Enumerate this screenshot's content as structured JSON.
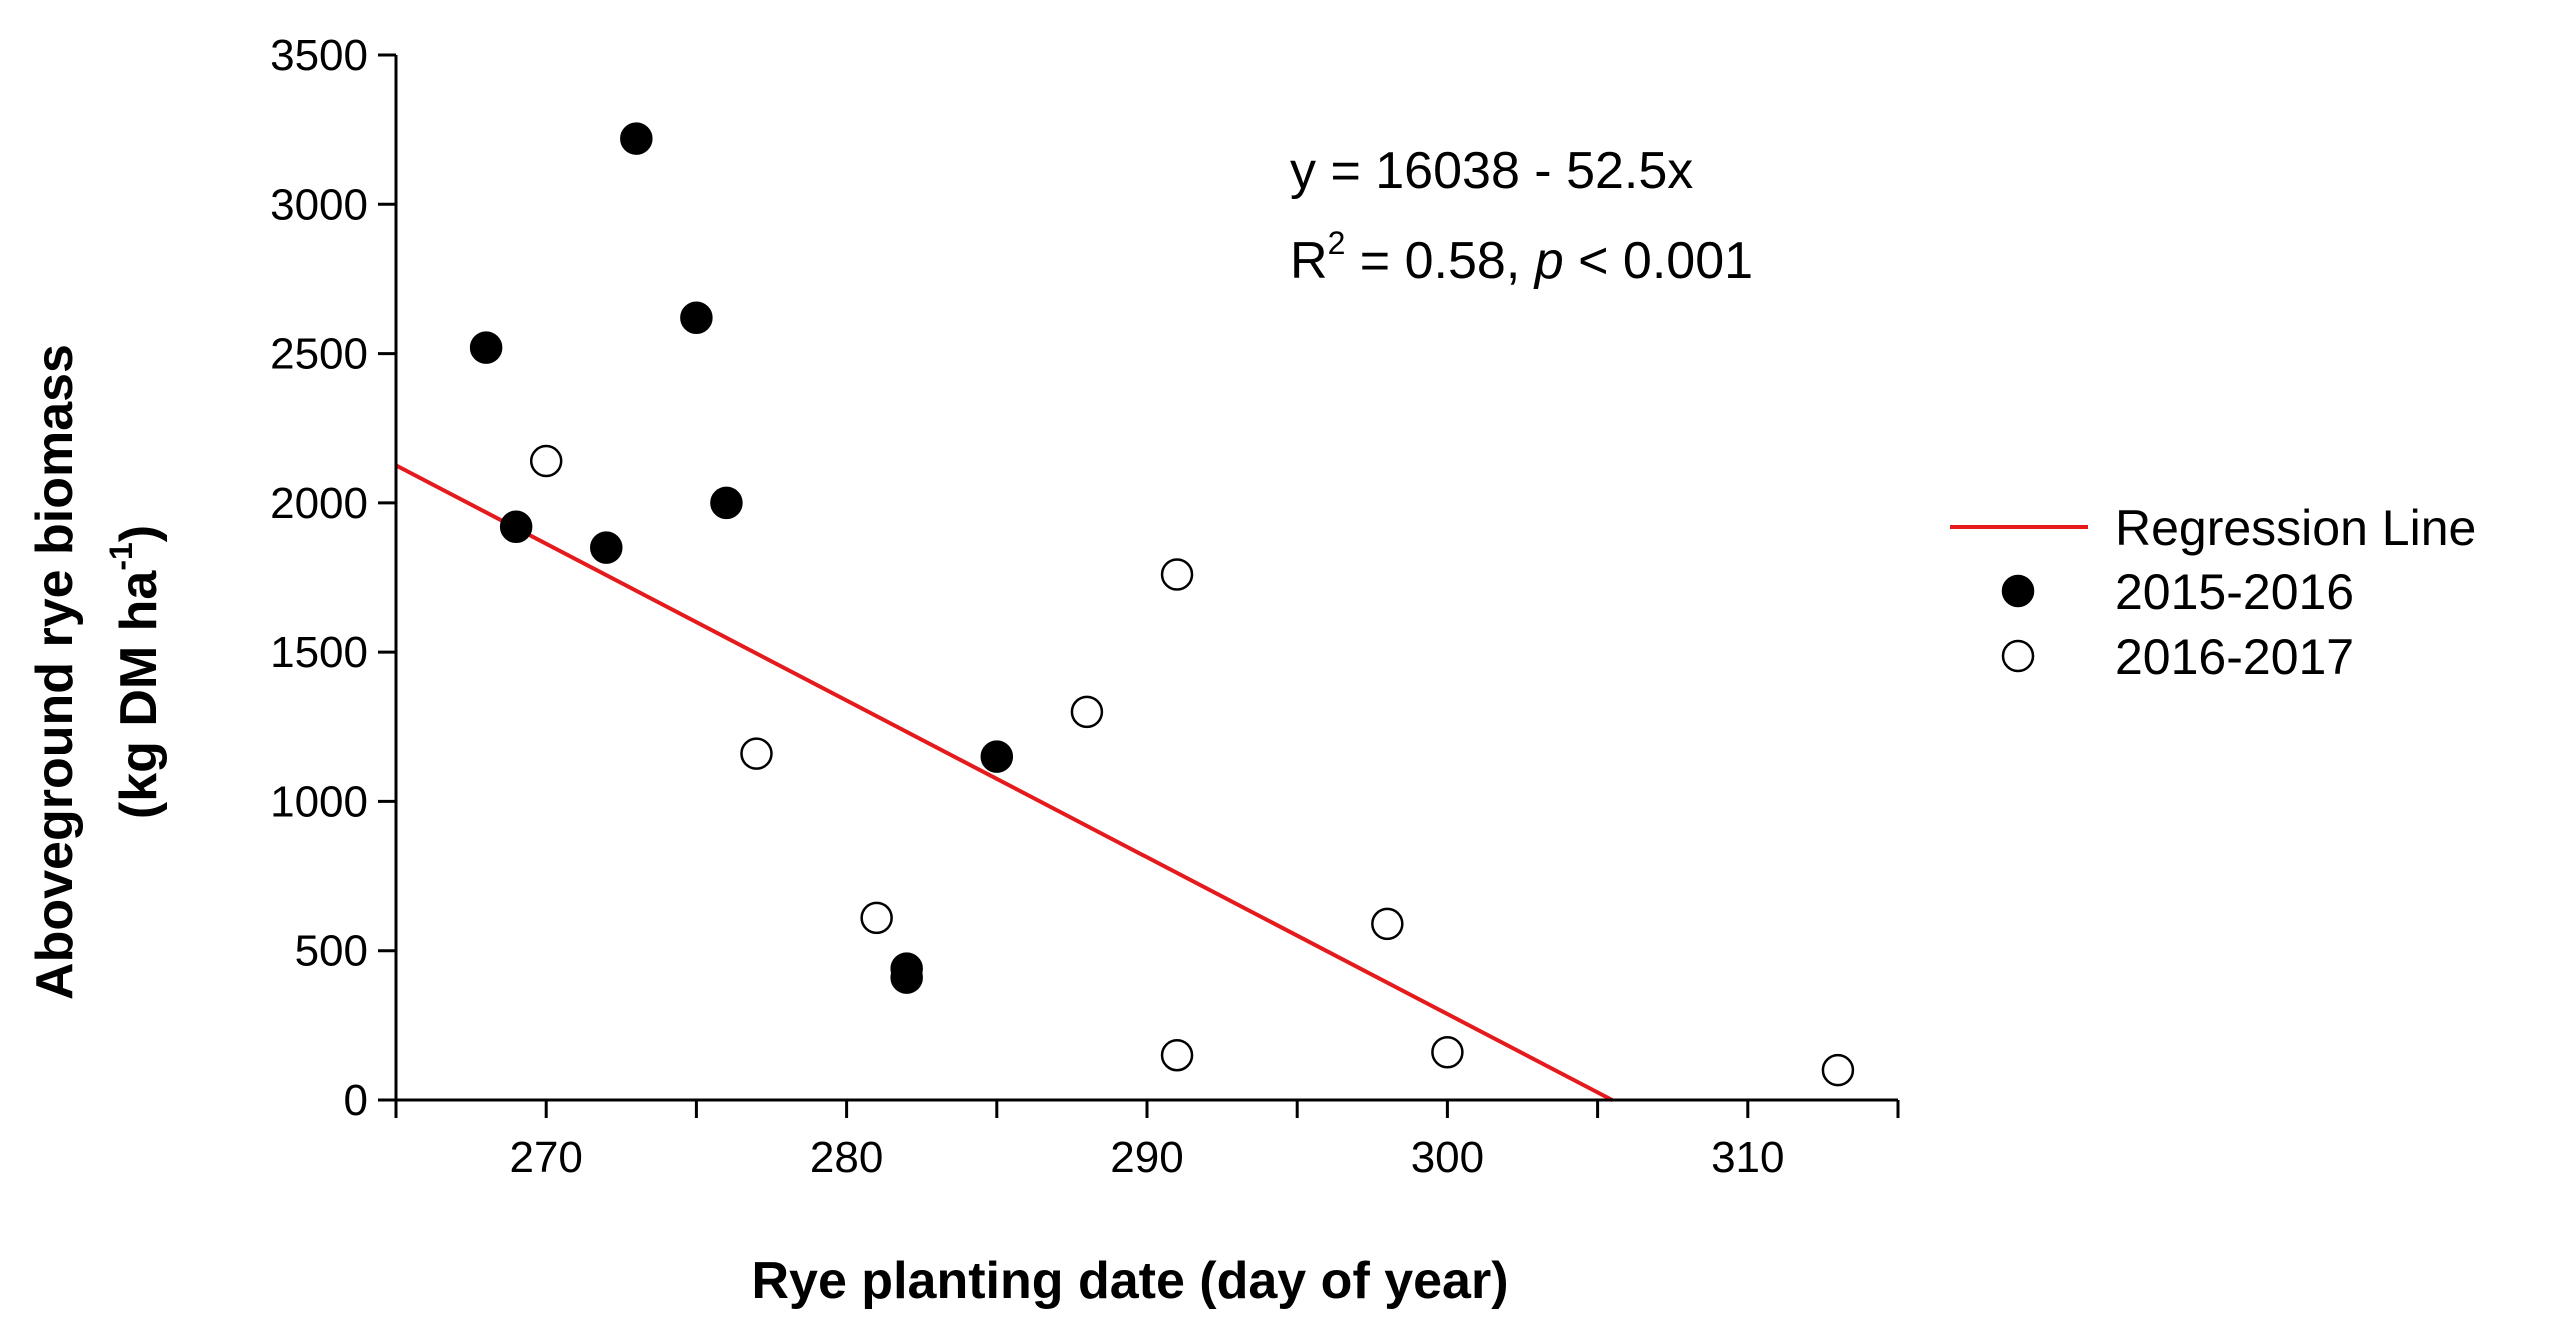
{
  "chart_data": {
    "type": "scatter",
    "title": "",
    "xlabel": "Rye planting date (day of year)",
    "ylabel_line1": "Aboveground rye biomass",
    "ylabel_line2_prefix": "(kg DM ha",
    "ylabel_line2_sup": "-1",
    "ylabel_line2_suffix": ")",
    "xlim": [
      265,
      315
    ],
    "ylim": [
      0,
      3500
    ],
    "xticks": [
      270,
      280,
      290,
      300,
      310
    ],
    "xticks_minor": [
      265,
      275,
      285,
      295,
      305,
      315
    ],
    "yticks": [
      0,
      500,
      1000,
      1500,
      2000,
      2500,
      3000,
      3500
    ],
    "series": [
      {
        "name": "2015-2016",
        "marker": "filled-circle",
        "color": "#000000",
        "points": [
          {
            "x": 268,
            "y": 2520
          },
          {
            "x": 269,
            "y": 1920
          },
          {
            "x": 272,
            "y": 1850
          },
          {
            "x": 273,
            "y": 3220
          },
          {
            "x": 275,
            "y": 2620
          },
          {
            "x": 276,
            "y": 2000
          },
          {
            "x": 282,
            "y": 440
          },
          {
            "x": 282,
            "y": 410
          },
          {
            "x": 285,
            "y": 1150
          }
        ]
      },
      {
        "name": "2016-2017",
        "marker": "open-circle",
        "color": "#000000",
        "points": [
          {
            "x": 270,
            "y": 2140
          },
          {
            "x": 277,
            "y": 1160
          },
          {
            "x": 281,
            "y": 610
          },
          {
            "x": 288,
            "y": 1300
          },
          {
            "x": 291,
            "y": 1760
          },
          {
            "x": 291,
            "y": 150
          },
          {
            "x": 298,
            "y": 590
          },
          {
            "x": 300,
            "y": 160
          },
          {
            "x": 313,
            "y": 100
          }
        ]
      }
    ],
    "regression": {
      "name": "Regression Line",
      "color": "#e41a1c",
      "intercept": 16038,
      "slope": -52.5,
      "x_start": 265,
      "x_end": 305.5
    },
    "annotation": {
      "equation": "y = 16038 - 52.5x",
      "r2_prefix": "R",
      "r2_sup": "2",
      "r2_value": " = 0.58, ",
      "p_symbol": "p",
      "p_value": " < 0.001"
    },
    "legend": {
      "placement": "right",
      "items": [
        {
          "label": "Regression Line",
          "kind": "line"
        },
        {
          "label": "2015-2016",
          "kind": "filled-circle"
        },
        {
          "label": "2016-2017",
          "kind": "open-circle"
        }
      ]
    }
  }
}
